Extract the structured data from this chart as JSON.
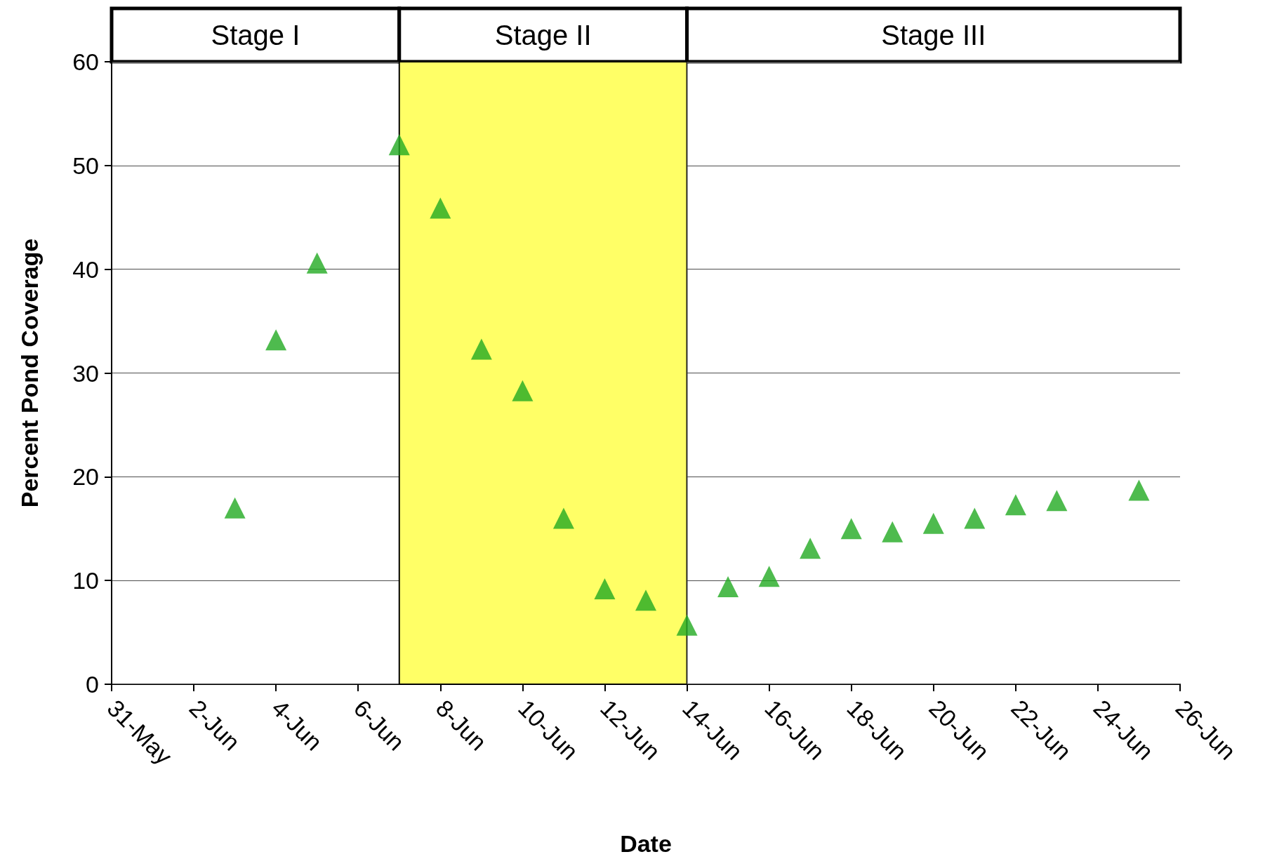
{
  "chart_data": {
    "type": "scatter",
    "xlabel": "Date",
    "ylabel": "Percent Pond Coverage",
    "x": [
      "--06-03",
      "--06-04",
      "--06-05",
      "--06-07",
      "--06-08",
      "--06-09",
      "--06-10",
      "--06-11",
      "--06-12",
      "--06-13",
      "--06-14",
      "--06-15",
      "--06-16",
      "--06-17",
      "--06-18",
      "--06-19",
      "--06-20",
      "--06-21",
      "--06-22",
      "--06-23",
      "--06-25"
    ],
    "series": [
      {
        "color": "#22aa22",
        "values": [
          17.0,
          33.2,
          40.6,
          52.0,
          45.9,
          32.3,
          28.3,
          16.0,
          9.2,
          8.1,
          5.7,
          9.4,
          10.4,
          13.1,
          15.0,
          14.7,
          15.5,
          16.0,
          17.3,
          17.7,
          18.7
        ]
      }
    ],
    "marker": "triangle",
    "grid": "y",
    "xlim": [
      "--05-31",
      "--06-26"
    ],
    "xticks": [
      {
        "value": "--05-31",
        "label": "31-May"
      },
      {
        "value": "--06-02",
        "label": "2-Jun"
      },
      {
        "value": "--06-04",
        "label": "4-Jun"
      },
      {
        "value": "--06-06",
        "label": "6-Jun"
      },
      {
        "value": "--06-08",
        "label": "8-Jun"
      },
      {
        "value": "--06-10",
        "label": "10-Jun"
      },
      {
        "value": "--06-12",
        "label": "12-Jun"
      },
      {
        "value": "--06-14",
        "label": "14-Jun"
      },
      {
        "value": "--06-16",
        "label": "16-Jun"
      },
      {
        "value": "--06-18",
        "label": "18-Jun"
      },
      {
        "value": "--06-20",
        "label": "20-Jun"
      },
      {
        "value": "--06-22",
        "label": "22-Jun"
      },
      {
        "value": "--06-24",
        "label": "24-Jun"
      },
      {
        "value": "--06-26",
        "label": "26-Jun"
      }
    ],
    "ylim": [
      0,
      60
    ],
    "yticks": [
      0,
      10,
      20,
      30,
      40,
      50,
      60
    ],
    "bands": [
      {
        "axis": "x",
        "from": "--05-31",
        "to": "--06-07",
        "label": "Stage I",
        "color": "#ffffff"
      },
      {
        "axis": "x",
        "from": "--06-07",
        "to": "--06-14",
        "label": "Stage II",
        "color": "#ffff66"
      },
      {
        "axis": "x",
        "from": "--06-14",
        "to": "--06-26",
        "label": "Stage III",
        "color": "#ffffff"
      }
    ]
  }
}
